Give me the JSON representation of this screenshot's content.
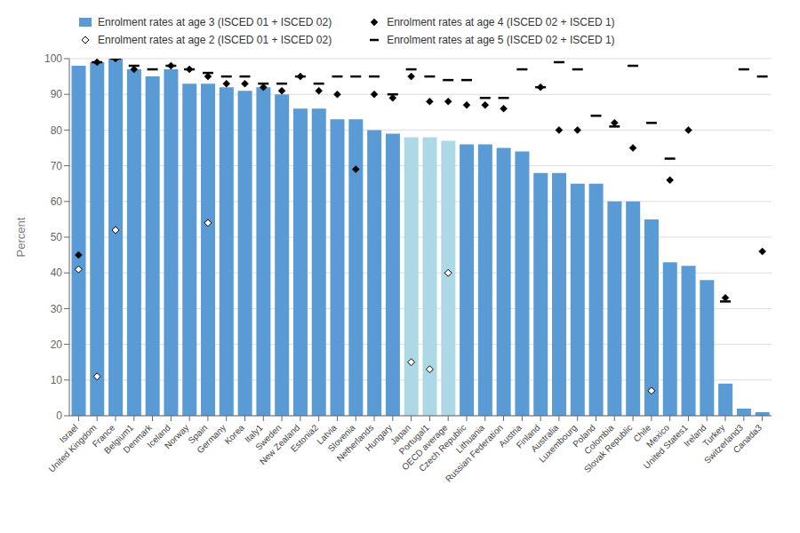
{
  "chart_data": {
    "type": "bar",
    "categories": [
      "Israel",
      "United Kingdom",
      "France",
      "Belgium1",
      "Denmark",
      "Iceland",
      "Norway",
      "Spain",
      "Germany",
      "Korea",
      "Italy1",
      "Sweden",
      "New Zealand",
      "Estonia2",
      "Latvia",
      "Slovenia",
      "Netherlands",
      "Hungary",
      "Japan",
      "Portugal1",
      "OECD average",
      "Czech Republic",
      "Lithuania",
      "Russian Federation",
      "Austria",
      "Finland",
      "Australia",
      "Luxembourg",
      "Poland",
      "Colombia",
      "Slovak Republic",
      "Chile",
      "Mexico",
      "United States1",
      "Ireland",
      "Turkey",
      "Switzerland3",
      "Canada3"
    ],
    "series": [
      {
        "name": "Enrolment rates at age 3  (ISCED 01 + ISCED 02)",
        "type": "bar",
        "color": "#5b9bd5",
        "colors": [
          "#5b9bd5",
          "#5b9bd5",
          "#5b9bd5",
          "#5b9bd5",
          "#5b9bd5",
          "#5b9bd5",
          "#5b9bd5",
          "#5b9bd5",
          "#5b9bd5",
          "#5b9bd5",
          "#5b9bd5",
          "#5b9bd5",
          "#5b9bd5",
          "#5b9bd5",
          "#5b9bd5",
          "#5b9bd5",
          "#5b9bd5",
          "#5b9bd5",
          "#add8e6",
          "#add8e6",
          "#add8e6",
          "#5b9bd5",
          "#5b9bd5",
          "#5b9bd5",
          "#5b9bd5",
          "#5b9bd5",
          "#5b9bd5",
          "#5b9bd5",
          "#5b9bd5",
          "#5b9bd5",
          "#5b9bd5",
          "#5b9bd5",
          "#5b9bd5",
          "#5b9bd5",
          "#5b9bd5",
          "#5b9bd5",
          "#5b9bd5",
          "#5b9bd5"
        ],
        "values": [
          98,
          99,
          100,
          97,
          95,
          97,
          93,
          93,
          92,
          91,
          92,
          90,
          86,
          86,
          83,
          83,
          80,
          79,
          78,
          78,
          77,
          76,
          76,
          75,
          74,
          68,
          68,
          65,
          65,
          60,
          60,
          55,
          43,
          42,
          38,
          9,
          2,
          1
        ]
      },
      {
        "name": "Enrolment rates at age 2  (ISCED 01 + ISCED 02)",
        "type": "scatter",
        "marker": "open-diamond",
        "color": "black",
        "values": [
          41,
          11,
          52,
          null,
          null,
          null,
          null,
          54,
          null,
          null,
          null,
          null,
          null,
          null,
          null,
          null,
          null,
          null,
          15,
          13,
          40,
          null,
          null,
          null,
          null,
          null,
          null,
          null,
          null,
          null,
          null,
          7,
          null,
          null,
          null,
          null,
          null,
          null
        ]
      },
      {
        "name": "Enrolment rates at age 4 (ISCED 02 + ISCED 1)",
        "type": "scatter",
        "marker": "diamond",
        "color": "black",
        "values": [
          45,
          99,
          100,
          97,
          null,
          98,
          97,
          95,
          93,
          93,
          92,
          91,
          95,
          91,
          90,
          69,
          90,
          89,
          95,
          88,
          88,
          87,
          87,
          86,
          null,
          92,
          80,
          80,
          null,
          82,
          75,
          null,
          66,
          80,
          null,
          33,
          null,
          46
        ]
      },
      {
        "name": "Enrolment rates at age 5 (ISCED 02 + ISCED 1)",
        "type": "scatter",
        "marker": "dash",
        "color": "black",
        "values": [
          null,
          99,
          100,
          98,
          97,
          98,
          97,
          96,
          95,
          95,
          93,
          93,
          95,
          93,
          95,
          95,
          95,
          90,
          97,
          95,
          94,
          94,
          89,
          89,
          97,
          92,
          99,
          97,
          84,
          81,
          98,
          82,
          72,
          null,
          null,
          32,
          97,
          95
        ]
      }
    ],
    "ylabel": "Percent",
    "ylim": [
      0,
      100
    ],
    "yticks": [
      0,
      10,
      20,
      30,
      40,
      50,
      60,
      70,
      80,
      90,
      100
    ],
    "grid": true,
    "legend": "top"
  }
}
